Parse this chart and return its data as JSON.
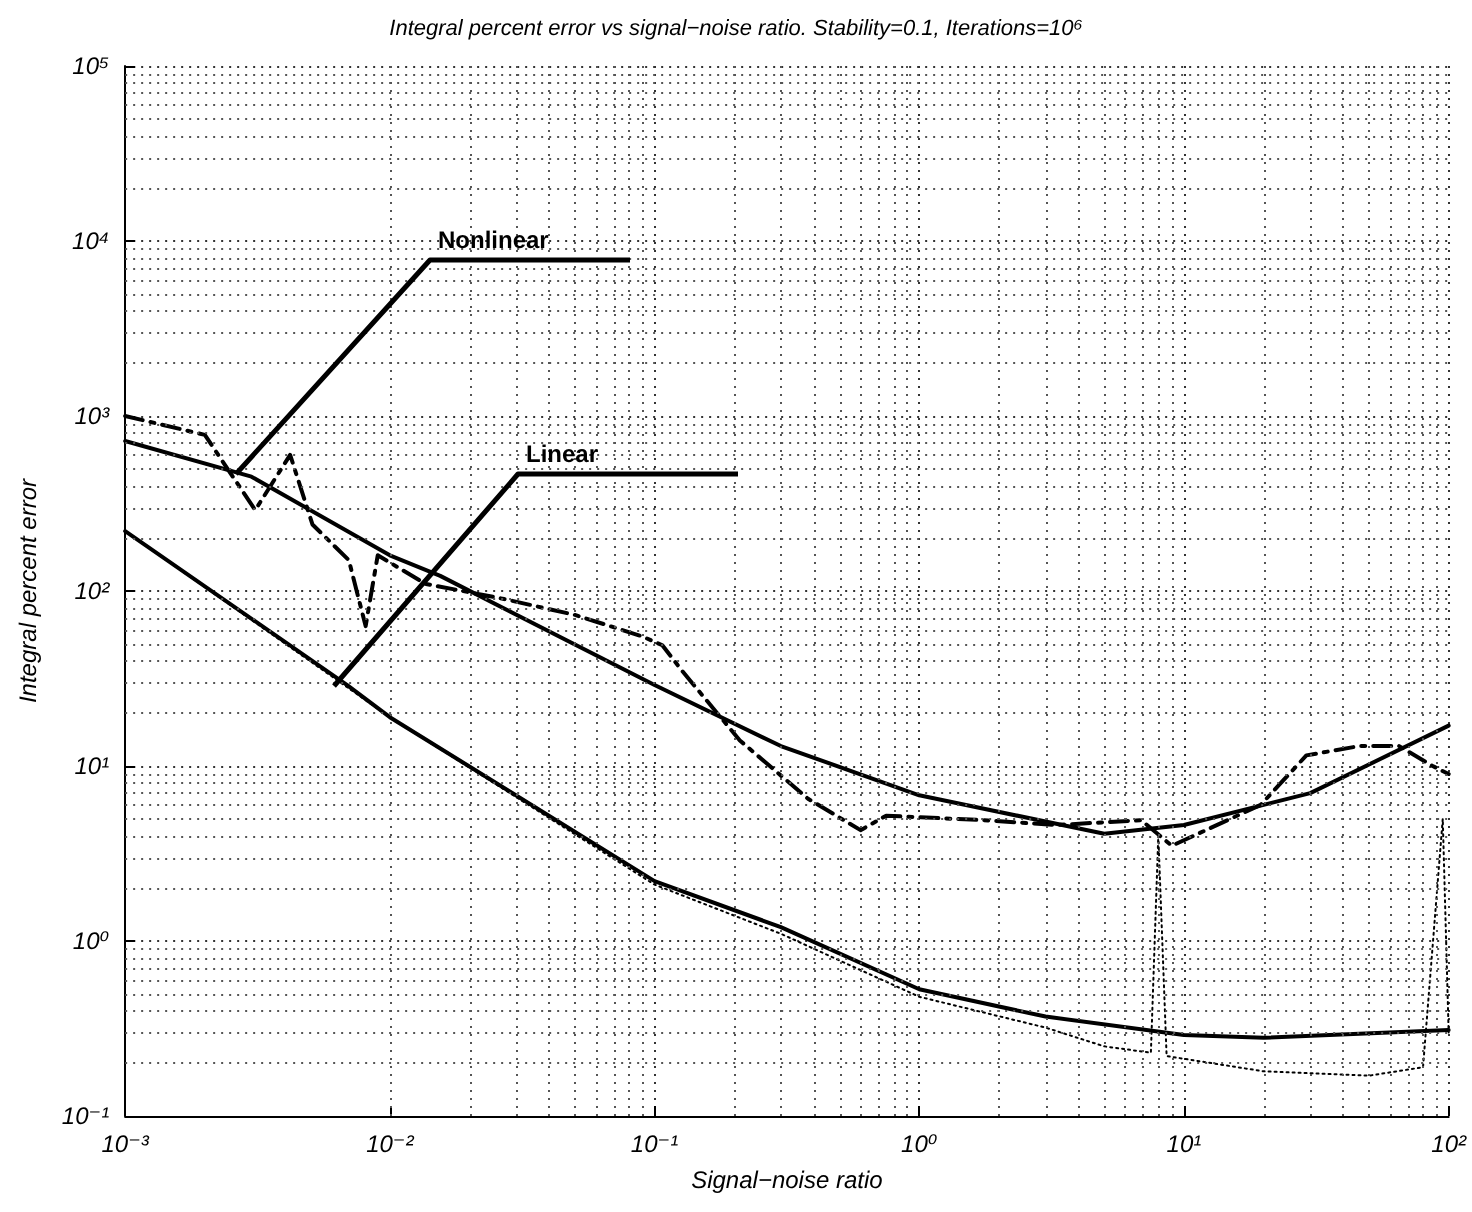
{
  "chart_data": {
    "type": "line",
    "title": "Integral percent error vs signal−noise ratio. Stability=0.1, Iterations=10⁶",
    "xlabel": "Signal−noise ratio",
    "ylabel": "Integral percent error",
    "log": "xy",
    "grid": true,
    "xlim": [
      0.001,
      100
    ],
    "ylim": [
      0.1,
      100000
    ],
    "xticks": [
      {
        "value": 0.001,
        "label": "10⁻³"
      },
      {
        "value": 0.01,
        "label": "10⁻²"
      },
      {
        "value": 0.1,
        "label": "10⁻¹"
      },
      {
        "value": 1,
        "label": "10⁰"
      },
      {
        "value": 10,
        "label": "10¹"
      },
      {
        "value": 100,
        "label": "10²"
      }
    ],
    "yticks": [
      {
        "value": 0.1,
        "label": "10⁻¹"
      },
      {
        "value": 1,
        "label": "10⁰"
      },
      {
        "value": 10,
        "label": "10¹"
      },
      {
        "value": 100,
        "label": "10²"
      },
      {
        "value": 1000,
        "label": "10³"
      },
      {
        "value": 10000,
        "label": "10⁴"
      },
      {
        "value": 100000,
        "label": "10⁵"
      }
    ],
    "series": [
      {
        "color": "#000000",
        "line_style": "solid",
        "x": [
          0.001,
          0.003,
          0.01,
          0.0155,
          0.1,
          0.3,
          1,
          5,
          10,
          30,
          100
        ],
        "values": [
          720,
          450,
          160,
          122,
          29,
          13,
          6.8,
          4.1,
          4.6,
          7,
          17
        ]
      },
      {
        "color": "#000000",
        "line_style": "solid",
        "x": [
          0.001,
          0.0069,
          0.01,
          0.1,
          0.3,
          1,
          3,
          10,
          20,
          100
        ],
        "values": [
          220,
          29,
          19,
          2.2,
          1.2,
          0.53,
          0.37,
          0.29,
          0.28,
          0.31
        ]
      },
      {
        "color": "#000000",
        "line_style": "dashed",
        "x": [
          0.001,
          0.002,
          0.0031,
          0.0042,
          0.0051,
          0.007,
          0.0081,
          0.009,
          0.0136,
          0.027,
          0.05,
          0.09,
          0.107,
          0.127,
          0.21,
          0.38,
          0.6,
          0.75,
          1.76,
          3.3,
          6.9,
          9,
          19.5,
          29,
          46,
          65,
          87,
          100
        ],
        "values": [
          1000,
          780,
          290,
          600,
          240,
          150,
          63,
          160,
          110,
          90,
          73,
          55,
          49,
          35,
          14,
          6.5,
          4.3,
          5.2,
          4.9,
          4.6,
          4.9,
          3.5,
          6,
          11.5,
          13,
          13,
          10,
          9
        ]
      },
      {
        "color": "#000000",
        "line_style": "dotted",
        "x": [
          0.001,
          0.01,
          0.1,
          0.3,
          1,
          3,
          5,
          7.5,
          8,
          8.6,
          20,
          50,
          80,
          95,
          100
        ],
        "values": [
          220,
          19,
          2.1,
          1.1,
          0.48,
          0.32,
          0.25,
          0.23,
          4,
          0.22,
          0.18,
          0.17,
          0.19,
          5,
          0.3
        ]
      }
    ],
    "annotations": [
      "Nonlinear",
      "Linear"
    ]
  }
}
